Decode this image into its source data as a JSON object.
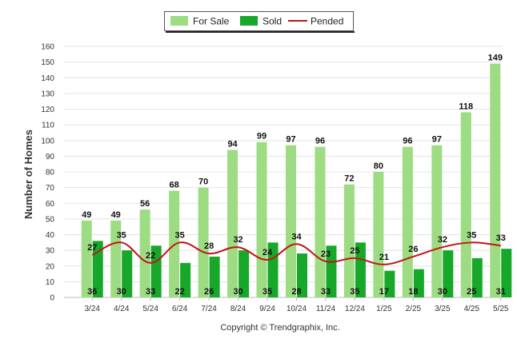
{
  "chart_data": {
    "type": "bar",
    "title": "",
    "xlabel": "",
    "ylabel": "Number of Homes",
    "ylim": [
      0,
      160
    ],
    "yticks": [
      0,
      10,
      20,
      30,
      40,
      50,
      60,
      70,
      80,
      90,
      100,
      110,
      120,
      130,
      140,
      150,
      160
    ],
    "grid": true,
    "legend_position": "top-center",
    "categories": [
      "3/24",
      "4/24",
      "5/24",
      "6/24",
      "7/24",
      "8/24",
      "9/24",
      "10/24",
      "11/24",
      "12/24",
      "1/25",
      "2/25",
      "3/25",
      "4/25",
      "5/25"
    ],
    "series": [
      {
        "name": "For Sale",
        "kind": "bar",
        "color": "#9ddc82",
        "values": [
          49,
          49,
          56,
          68,
          70,
          94,
          99,
          97,
          96,
          72,
          80,
          96,
          97,
          118,
          149
        ]
      },
      {
        "name": "Sold",
        "kind": "bar",
        "color": "#17a82a",
        "values": [
          36,
          30,
          33,
          22,
          26,
          30,
          35,
          28,
          33,
          35,
          17,
          18,
          30,
          25,
          31
        ]
      },
      {
        "name": "Pended",
        "kind": "line",
        "color": "#c41414",
        "values": [
          27,
          35,
          22,
          35,
          28,
          32,
          24,
          34,
          23,
          25,
          21,
          26,
          32,
          35,
          33
        ]
      }
    ]
  },
  "footer": {
    "copyright": "Copyright © Trendgraphix, Inc."
  }
}
